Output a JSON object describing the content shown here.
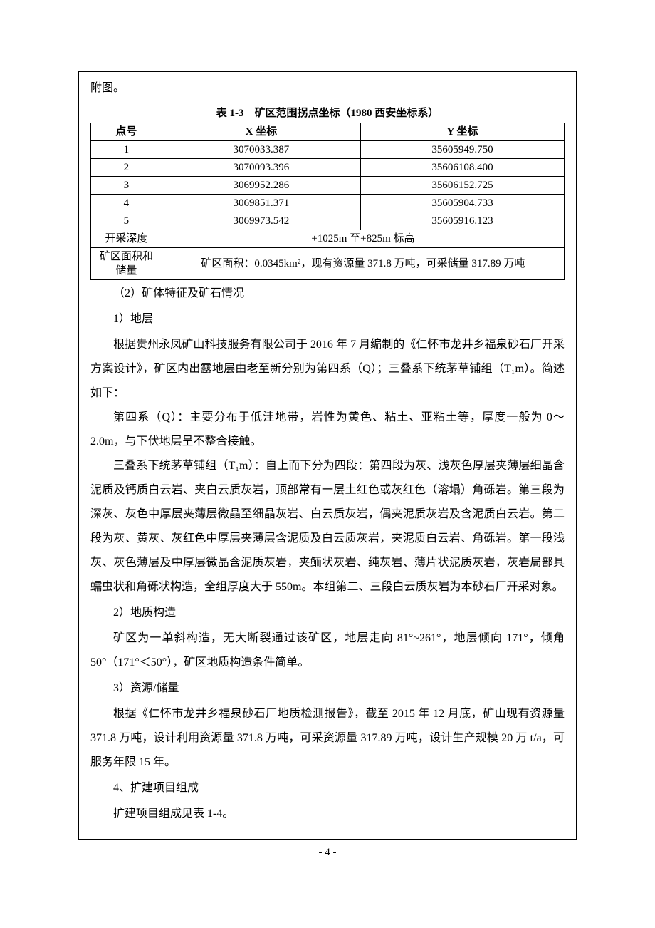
{
  "page_number": "- 4 -",
  "intro_line": "附图。",
  "table_1_3": {
    "caption": "表 1-3　矿区范围拐点坐标（1980 西安坐标系）",
    "headers": {
      "pt": "点号",
      "x": "X 坐标",
      "y": "Y 坐标"
    },
    "rows": [
      {
        "pt": "1",
        "x": "3070033.387",
        "y": "35605949.750"
      },
      {
        "pt": "2",
        "x": "3070093.396",
        "y": "35606108.400"
      },
      {
        "pt": "3",
        "x": "3069952.286",
        "y": "35606152.725"
      },
      {
        "pt": "4",
        "x": "3069851.371",
        "y": "35605904.733"
      },
      {
        "pt": "5",
        "x": "3069973.542",
        "y": "35605916.123"
      }
    ],
    "depth_label": "开采深度",
    "depth_value": "+1025m 至+825m 标高",
    "area_label": "矿区面积和储量",
    "area_value": "矿区面积：0.0345km²，现有资源量 371.8 万吨，可采储量 317.89 万吨"
  },
  "headings": {
    "h2": "（2）矿体特征及矿石情况",
    "h2_1": "1）地层",
    "h2_2": "2）地质构造",
    "h2_3": "3）资源/储量",
    "h4": "4、扩建项目组成"
  },
  "paras": {
    "p1": "根据贵州永凤矿山科技服务有限公司于 2016 年 7 月编制的《仁怀市龙井乡福泉砂石厂开采方案设计》，矿区内出露地层由老至新分别为第四系（Q）；三叠系下统茅草铺组（T₁m）。简述如下：",
    "p2": "第四系（Q）：主要分布于低洼地带，岩性为黄色、粘土、亚粘土等，厚度一般为 0～2.0m，与下伏地层呈不整合接触。",
    "p3": "三叠系下统茅草铺组（T₁m）：自上而下分为四段：第四段为灰、浅灰色厚层夹薄层细晶含泥质及钙质白云岩、夹白云质灰岩，顶部常有一层土红色或灰红色（溶塌）角砾岩。第三段为深灰、灰色中厚层夹薄层微晶至细晶灰岩、白云质灰岩，偶夹泥质灰岩及含泥质白云岩。第二段为灰、黄灰、灰红色中厚层夹薄层含泥质及白云质灰岩，夹泥质白云岩、角砾岩。第一段浅灰、灰色薄层及中厚层微晶含泥质灰岩，夹鲕状灰岩、纯灰岩、薄片状泥质灰岩，灰岩局部具蠕虫状和角砾状构造，全组厚度大于 550m。本组第二、三段白云质灰岩为本砂石厂开采对象。",
    "p4": "矿区为一单斜构造，无大断裂通过该矿区，地层走向 81°~261°，地层倾向 171°，倾角 50°（171°＜50°），矿区地质构造条件简单。",
    "p5": "根据《仁怀市龙井乡福泉砂石厂地质检测报告》，截至 2015 年 12 月底，矿山现有资源量 371.8 万吨，设计利用资源量 371.8 万吨，可采资源量 317.89 万吨，设计生产规模 20 万 t/a，可服务年限 15 年。",
    "p6": "扩建项目组成见表 1-4。"
  }
}
